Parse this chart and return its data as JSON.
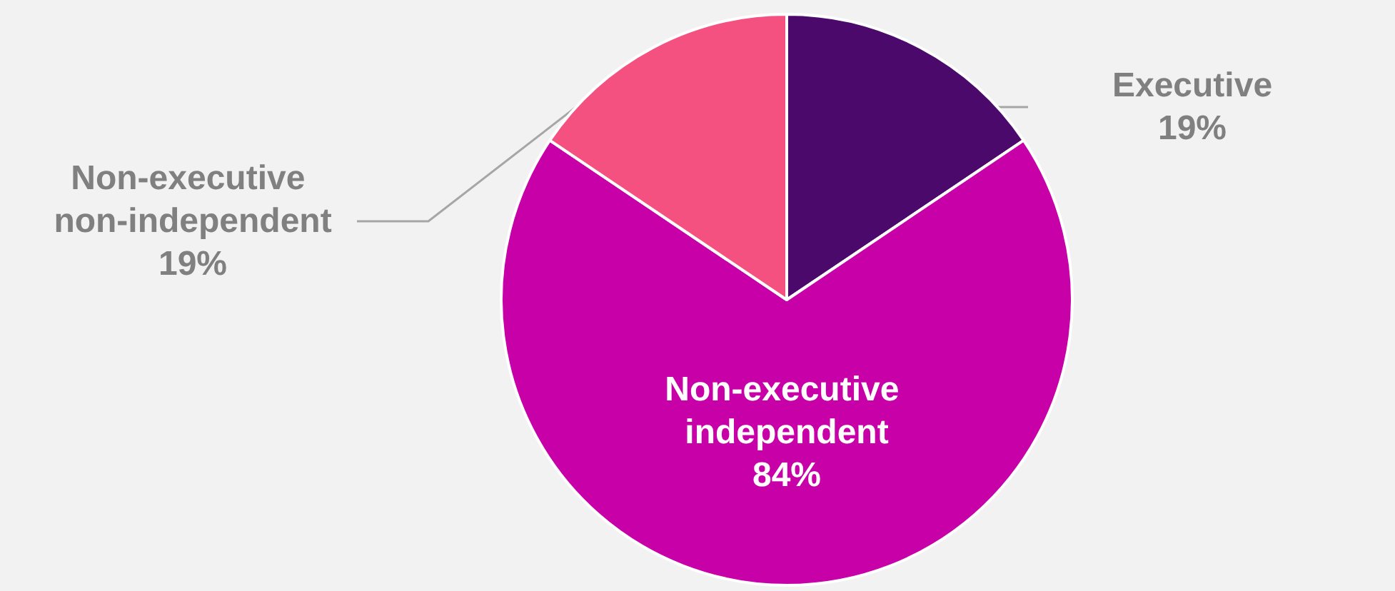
{
  "chart_data": {
    "type": "pie",
    "categories": [
      "Executive",
      "Non-executive independent",
      "Non-executive non-independent"
    ],
    "values": [
      19,
      84,
      19
    ],
    "value_labels": [
      "19%",
      "84%",
      "19%"
    ],
    "colors": [
      "#4b0a6b",
      "#c800a8",
      "#f45180"
    ],
    "legend": false
  }
}
